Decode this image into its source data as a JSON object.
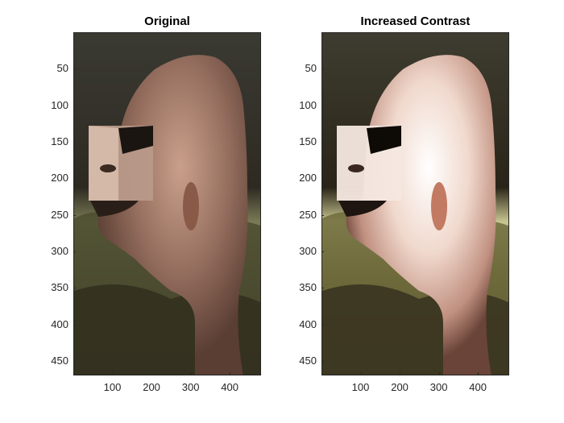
{
  "figure": {
    "panels": [
      {
        "title": "Original",
        "style": "normal"
      },
      {
        "title": "Increased Contrast",
        "style": "contrast"
      }
    ]
  },
  "axes": {
    "y_ticks": [
      "50",
      "100",
      "150",
      "200",
      "250",
      "300",
      "350",
      "400",
      "450"
    ],
    "x_ticks": [
      "100",
      "200",
      "300",
      "400"
    ],
    "xlim": [
      0,
      480
    ],
    "ylim": [
      0,
      470
    ]
  },
  "colors": {
    "text": "#262626",
    "title": "#000000"
  }
}
